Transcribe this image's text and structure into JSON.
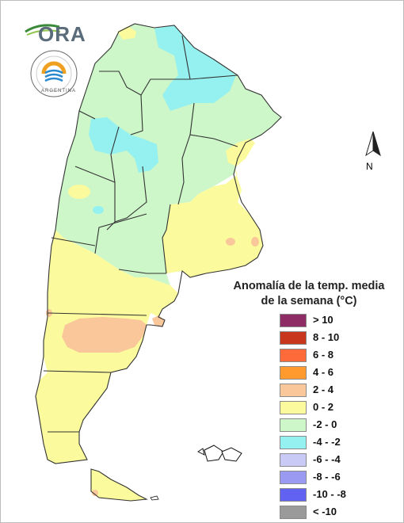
{
  "legend": {
    "title": "Anomalía de la temp. media\nde la semana (°C)",
    "items": [
      {
        "label": "> 10",
        "color": "#8e2c66"
      },
      {
        "label": "8 - 10",
        "color": "#c9361e"
      },
      {
        "label": "6 - 8",
        "color": "#ff6a3a"
      },
      {
        "label": "4 - 6",
        "color": "#ff9a2e"
      },
      {
        "label": "2 - 4",
        "color": "#f9c79a"
      },
      {
        "label": "0 - 2",
        "color": "#fbfb9e"
      },
      {
        "label": "-2 - 0",
        "color": "#cdf6c9"
      },
      {
        "label": "-4 - -2",
        "color": "#95f1ef"
      },
      {
        "label": "-6 - -4",
        "color": "#c9cbf6"
      },
      {
        "label": "-8 - -6",
        "color": "#9a9af3"
      },
      {
        "label": "-10 - -8",
        "color": "#6262f2"
      },
      {
        "label": "< -10",
        "color": "#9a9a9a"
      }
    ]
  },
  "logos": {
    "ora": "ORA",
    "smn_seal": "ARGENTINA"
  },
  "north_arrow": {
    "label": "N"
  },
  "colors": {
    "cold_anomaly": "#cdf6c9",
    "cyan_anomaly": "#95f1ef",
    "warm_anomaly": "#fbfb9e",
    "hot_anomaly": "#f9c79a",
    "boundaries": "#333333"
  }
}
